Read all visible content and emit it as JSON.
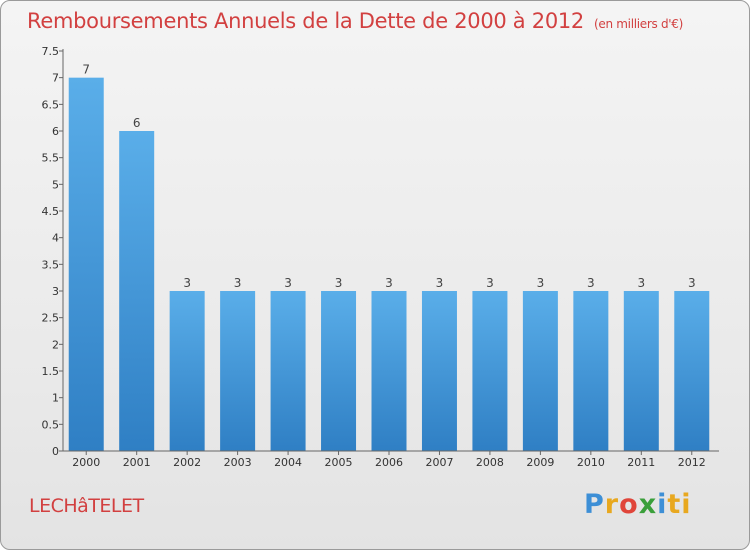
{
  "title": "Remboursements Annuels de la Dette de 2000 à 2012",
  "subtitle": "(en milliers d'€)",
  "town": "LECHâTELET",
  "logo": {
    "letters": [
      "P",
      "r",
      "o",
      "x",
      "i",
      "ti"
    ]
  },
  "colors": {
    "title": "#d24040",
    "bar_light": "#5aaee9",
    "bar_dark": "#2f7fc4"
  },
  "chart_data": {
    "type": "bar",
    "categories": [
      "2000",
      "2001",
      "2002",
      "2003",
      "2004",
      "2005",
      "2006",
      "2007",
      "2008",
      "2009",
      "2010",
      "2011",
      "2012"
    ],
    "values": [
      7,
      6,
      3,
      3,
      3,
      3,
      3,
      3,
      3,
      3,
      3,
      3,
      3
    ],
    "data_labels": [
      "7",
      "6",
      "3",
      "3",
      "3",
      "3",
      "3",
      "3",
      "3",
      "3",
      "3",
      "3",
      "3"
    ],
    "yticks": [
      "0",
      "0.5",
      "1",
      "1.5",
      "2",
      "2.5",
      "3",
      "3.5",
      "4",
      "4.5",
      "5",
      "5.5",
      "6",
      "6.5",
      "7",
      "7.5"
    ],
    "ylim": [
      0,
      7.5
    ],
    "grid": false,
    "title": "Remboursements Annuels de la Dette de 2000 à 2012",
    "xlabel": "",
    "ylabel": ""
  }
}
